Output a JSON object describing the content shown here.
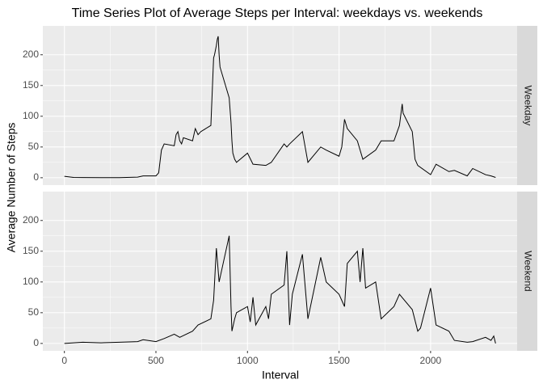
{
  "chart_data": {
    "type": "line",
    "title": "Time Series Plot of Average Steps per Interval: weekdays vs. weekends",
    "xlabel": "Interval",
    "ylabel": "Average Number of Steps",
    "xlim": [
      -117.75,
      2472.75
    ],
    "xticks": [
      0,
      500,
      1000,
      1500,
      2000
    ],
    "ylim": [
      -12,
      247
    ],
    "yticks": [
      0,
      50,
      100,
      150,
      200
    ],
    "grid": true,
    "color": "#000000",
    "series": [
      {
        "name": "Weekday",
        "x": [
          0,
          50,
          100,
          200,
          300,
          400,
          430,
          500,
          515,
          530,
          545,
          600,
          610,
          620,
          630,
          640,
          650,
          700,
          715,
          730,
          745,
          800,
          815,
          820,
          830,
          835,
          840,
          845,
          850,
          900,
          910,
          915,
          920,
          930,
          940,
          1000,
          1030,
          1100,
          1130,
          1200,
          1215,
          1230,
          1300,
          1330,
          1400,
          1430,
          1500,
          1515,
          1530,
          1545,
          1600,
          1630,
          1700,
          1730,
          1800,
          1830,
          1845,
          1850,
          1900,
          1915,
          1930,
          2000,
          2030,
          2100,
          2130,
          2200,
          2230,
          2300,
          2330,
          2355
        ],
        "values": [
          2.3,
          0.5,
          0.3,
          0.2,
          0.2,
          1,
          3,
          3,
          8,
          45,
          55,
          52,
          70,
          75,
          60,
          55,
          65,
          60,
          80,
          70,
          75,
          85,
          195,
          200,
          215,
          225,
          230,
          200,
          180,
          130,
          90,
          60,
          40,
          30,
          25,
          40,
          22,
          20,
          25,
          55,
          50,
          55,
          75,
          25,
          50,
          45,
          35,
          50,
          95,
          80,
          60,
          30,
          45,
          60,
          60,
          85,
          120,
          105,
          75,
          30,
          20,
          5,
          22,
          10,
          12,
          3,
          15,
          5,
          3,
          0.5
        ]
      },
      {
        "name": "Weekend",
        "x": [
          0,
          50,
          100,
          200,
          300,
          400,
          430,
          500,
          545,
          600,
          630,
          700,
          730,
          800,
          815,
          830,
          845,
          900,
          910,
          915,
          930,
          940,
          1000,
          1015,
          1030,
          1045,
          1100,
          1115,
          1130,
          1200,
          1215,
          1230,
          1245,
          1300,
          1330,
          1400,
          1430,
          1500,
          1530,
          1545,
          1600,
          1615,
          1630,
          1645,
          1700,
          1730,
          1800,
          1830,
          1900,
          1930,
          1945,
          2000,
          2015,
          2030,
          2100,
          2130,
          2200,
          2230,
          2300,
          2330,
          2345,
          2355
        ],
        "values": [
          0,
          1,
          2,
          1,
          2,
          3,
          6,
          3,
          8,
          15,
          10,
          20,
          30,
          40,
          70,
          155,
          100,
          175,
          60,
          20,
          40,
          50,
          60,
          35,
          75,
          30,
          60,
          40,
          80,
          95,
          150,
          30,
          80,
          145,
          40,
          140,
          100,
          80,
          60,
          130,
          150,
          100,
          155,
          90,
          100,
          40,
          60,
          80,
          55,
          20,
          25,
          90,
          60,
          30,
          20,
          5,
          2,
          3,
          10,
          5,
          12,
          0
        ]
      }
    ]
  }
}
